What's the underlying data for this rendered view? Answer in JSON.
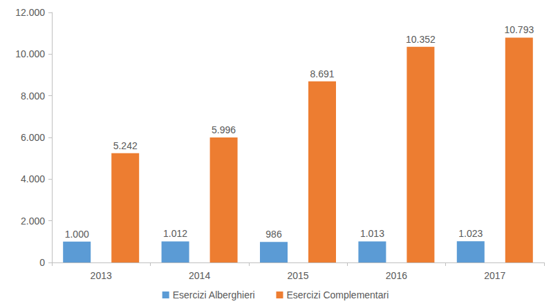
{
  "chart_data": {
    "type": "bar",
    "categories": [
      "2013",
      "2014",
      "2015",
      "2016",
      "2017"
    ],
    "series": [
      {
        "name": "Esercizi Alberghieri",
        "color": "#5B9BD5",
        "values": [
          1000,
          1012,
          986,
          1013,
          1023
        ],
        "value_labels": [
          "1.000",
          "1.012",
          "986",
          "1.013",
          "1.023"
        ]
      },
      {
        "name": "Esercizi Complementari",
        "color": "#ED7D31",
        "values": [
          5242,
          5996,
          8691,
          10352,
          10793
        ],
        "value_labels": [
          "5.242",
          "5.996",
          "8.691",
          "10.352",
          "10.793"
        ]
      }
    ],
    "ylim": [
      0,
      12000
    ],
    "yticks": [
      0,
      {
        "value": 2000,
        "label": "2.000"
      },
      {
        "value": 4000,
        "label": "4.000"
      },
      {
        "value": 6000,
        "label": "6.000"
      },
      {
        "value": 8000,
        "label": "8.000"
      },
      {
        "value": 10000,
        "label": "10.000"
      },
      {
        "value": 12000,
        "label": "12.000"
      }
    ],
    "grid": false,
    "legend": "bottom",
    "data_labels": true
  }
}
